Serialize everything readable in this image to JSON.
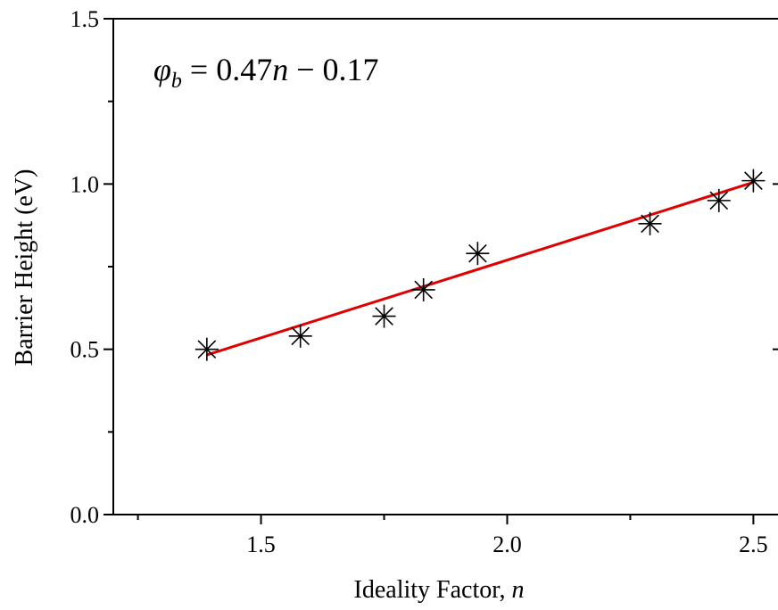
{
  "chart_data": {
    "type": "scatter",
    "xlabel": "Ideality Factor, ",
    "xlabel_var": "n",
    "ylabel": "Barrier Height (eV)",
    "annotation": {
      "symbol": "φ",
      "subscript": "b",
      "equals": " = ",
      "rhs_a": "0.47",
      "rhs_var": "n",
      "rhs_b": " − 0.17"
    },
    "xlim": [
      1.2,
      2.55
    ],
    "ylim": [
      0.0,
      1.5
    ],
    "x_ticks": [
      {
        "value": 1.5,
        "label": "1.5"
      },
      {
        "value": 2.0,
        "label": "2.0"
      },
      {
        "value": 2.5,
        "label": "2.5"
      }
    ],
    "x_minor_ticks": [
      1.25,
      1.75,
      2.25
    ],
    "y_ticks": [
      {
        "value": 0.0,
        "label": "0.0"
      },
      {
        "value": 0.5,
        "label": "0.5"
      },
      {
        "value": 1.0,
        "label": "1.0"
      },
      {
        "value": 1.5,
        "label": "1.5"
      }
    ],
    "y_minor_ticks": [
      0.25,
      0.75,
      1.25
    ],
    "series": [
      {
        "marker": "asterisk",
        "color": "#000000",
        "x": [
          1.39,
          1.58,
          1.75,
          1.83,
          1.94,
          2.29,
          2.43,
          2.5
        ],
        "y": [
          0.5,
          0.54,
          0.6,
          0.68,
          0.79,
          0.88,
          0.95,
          1.01
        ]
      }
    ],
    "fit_line": {
      "color": "#e00000",
      "x": [
        1.39,
        2.5
      ],
      "y": [
        0.483,
        1.005
      ]
    },
    "grid": false,
    "legend": "none"
  }
}
